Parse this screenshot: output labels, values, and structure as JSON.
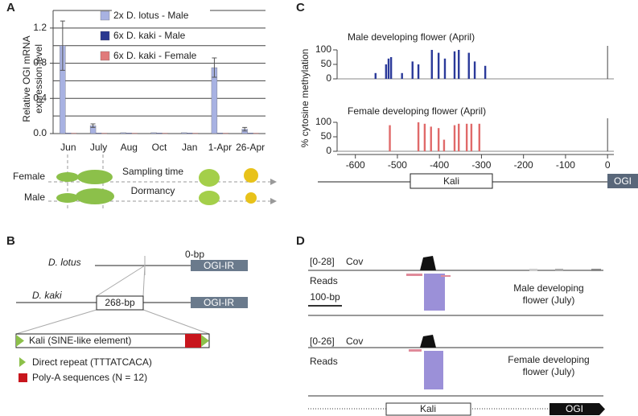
{
  "chart_data": [
    {
      "type": "bar",
      "panel_label": "A",
      "ylabel": "Relative OGI mRNA expression level",
      "categories": [
        "Jun",
        "July",
        "Aug",
        "Oct",
        "Jan",
        "1-Apr",
        "26-Apr"
      ],
      "series": [
        {
          "name": "2x D. lotus - Male",
          "color": "#a8b2e2",
          "values": [
            1.0,
            0.09,
            0.01,
            0.01,
            0.01,
            0.75,
            0.05
          ],
          "errors": [
            0.28,
            0.02,
            0.0,
            0.0,
            0.0,
            0.11,
            0.02
          ]
        },
        {
          "name": "6x D. kaki - Male",
          "color": "#2b3990",
          "values": [
            0.005,
            0.005,
            0.005,
            0.005,
            0.005,
            0.005,
            0.005
          ]
        },
        {
          "name": "6x D. kaki - Female",
          "color": "#e07b7b",
          "values": [
            0.005,
            0.005,
            0.005,
            0.005,
            0.005,
            0.005,
            0.005
          ]
        }
      ],
      "ylim": [
        0,
        1.4
      ],
      "yticks": [
        {
          "value": 0,
          "label": "0.0"
        },
        0.4,
        0.8,
        1.2
      ],
      "gridlines": [
        0.2,
        0.4,
        0.6,
        0.8,
        1.0,
        1.2,
        1.4
      ],
      "grid": true,
      "annotations": [
        "Female",
        "Male",
        "Sampling time",
        "Dormancy"
      ]
    },
    {
      "type": "bar",
      "panel_label": "C",
      "ylabel": "% cytosine methylation",
      "xlim": [
        -676,
        15
      ],
      "xticks": [
        -600,
        -500,
        -400,
        -300,
        -200,
        -100,
        0
      ],
      "ylim": [
        0,
        100
      ],
      "yticks": [
        0,
        50,
        100
      ],
      "tracks": [
        {
          "title": "Male developing flower (April)",
          "color": "#2b3a9a",
          "x": [
            -552,
            -527,
            -521,
            -515,
            -489,
            -464,
            -450,
            -418,
            -402,
            -387,
            -364,
            -354,
            -330,
            -316,
            -291
          ],
          "values": [
            20,
            50,
            70,
            75,
            20,
            60,
            50,
            100,
            90,
            70,
            95,
            100,
            90,
            60,
            45
          ]
        },
        {
          "title": "Female developing flower (April)",
          "color": "#e06a6a",
          "x": [
            -518,
            -450,
            -435,
            -420,
            -402,
            -389,
            -364,
            -354,
            -335,
            -324,
            -305
          ],
          "values": [
            90,
            100,
            95,
            85,
            80,
            40,
            90,
            95,
            95,
            95,
            95
          ]
        }
      ],
      "annotations": [
        "Kali",
        "OGI"
      ]
    }
  ],
  "panel_B": {
    "label": "B",
    "species": [
      "D. lotus",
      "D. kaki"
    ],
    "gap": "0-bp",
    "insertion": "268-bp",
    "gene": "OGI-IR",
    "element": "Kali (SINE-like element)",
    "legend": [
      "Direct repeat (TTTATCACA)",
      "Poly-A sequences (N = 12)"
    ]
  },
  "panel_D": {
    "label": "D",
    "tracks": [
      {
        "range": "[0-28]",
        "coverage": "Cov",
        "reads": "Reads",
        "sample": "Male developing flower (July)"
      },
      {
        "range": "[0-26]",
        "coverage": "Cov",
        "reads": "Reads",
        "sample": "Female developing flower (July)"
      }
    ],
    "scale_bar": "100-bp",
    "genes": [
      "Kali",
      "OGI"
    ]
  }
}
